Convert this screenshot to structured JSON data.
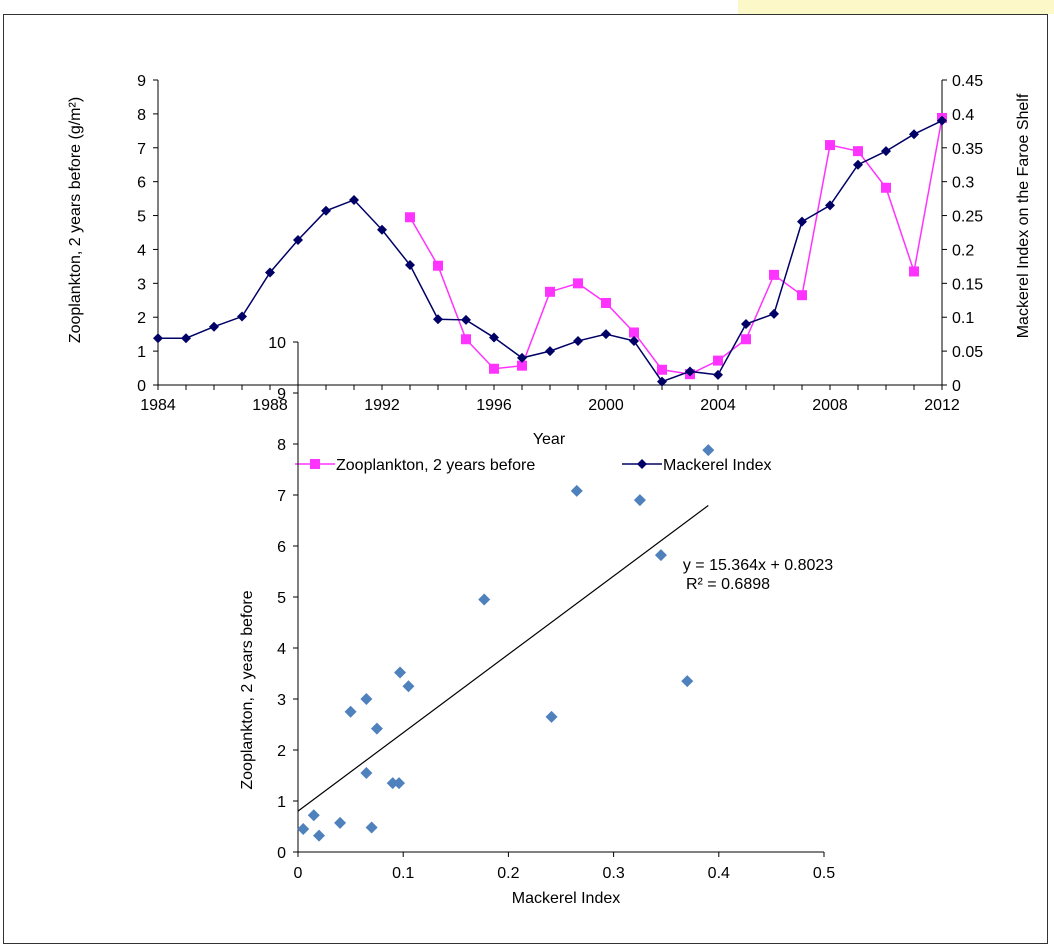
{
  "chart_data": [
    {
      "type": "line",
      "xlabel": "Year",
      "ylabel_left": "Zooplankton, 2 years before (g/m²)",
      "ylabel_right": "Mackerel Index on the Faroe Shelf",
      "x_ticks": [
        "1984",
        "1988",
        "1992",
        "1996",
        "2000",
        "2004",
        "2008",
        "2012"
      ],
      "x_tick_values": [
        1984,
        1988,
        1992,
        1996,
        2000,
        2004,
        2008,
        2012
      ],
      "xlim": [
        1984,
        2012
      ],
      "y_left_ticks": [
        "0",
        "1",
        "2",
        "3",
        "4",
        "5",
        "6",
        "7",
        "8",
        "9"
      ],
      "y_left_lim": [
        0,
        9
      ],
      "y_right_ticks": [
        "0",
        "0.05",
        "0.1",
        "0.15",
        "0.2",
        "0.25",
        "0.3",
        "0.35",
        "0.4",
        "0.45"
      ],
      "y_right_lim": [
        0,
        0.45
      ],
      "legend_position": "bottom",
      "series": [
        {
          "name": "Zooplankton, 2 years before",
          "axis": "left",
          "color": "#ff33ff",
          "marker": "square",
          "x": [
            1993,
            1994,
            1995,
            1996,
            1997,
            1998,
            1999,
            2000,
            2001,
            2002,
            2003,
            2004,
            2005,
            2006,
            2007,
            2008,
            2009,
            2010,
            2011,
            2012
          ],
          "values": [
            4.95,
            3.52,
            1.35,
            0.48,
            0.57,
            2.75,
            3.0,
            2.42,
            1.55,
            0.45,
            0.32,
            0.72,
            1.35,
            3.25,
            2.65,
            7.08,
            6.9,
            5.82,
            3.35,
            7.88
          ]
        },
        {
          "name": "Mackerel Index",
          "axis": "right",
          "color": "#000066",
          "marker": "diamond",
          "x": [
            1984,
            1985,
            1986,
            1987,
            1988,
            1989,
            1990,
            1991,
            1992,
            1993,
            1994,
            1995,
            1996,
            1997,
            1998,
            1999,
            2000,
            2001,
            2002,
            2003,
            2004,
            2005,
            2006,
            2007,
            2008,
            2009,
            2010,
            2011,
            2012
          ],
          "values": [
            0.069,
            0.069,
            0.086,
            0.101,
            0.166,
            0.214,
            0.257,
            0.273,
            0.229,
            0.177,
            0.097,
            0.096,
            0.07,
            0.04,
            0.05,
            0.065,
            0.075,
            0.065,
            0.005,
            0.02,
            0.015,
            0.09,
            0.105,
            0.241,
            0.265,
            0.325,
            0.345,
            0.37,
            0.39
          ]
        }
      ]
    },
    {
      "type": "scatter",
      "xlabel": "Mackerel Index",
      "ylabel": "Zooplankton, 2 years before",
      "x_ticks": [
        "0",
        "0.1",
        "0.2",
        "0.3",
        "0.4",
        "0.5"
      ],
      "x_tick_values": [
        0,
        0.1,
        0.2,
        0.3,
        0.4,
        0.5
      ],
      "xlim": [
        0,
        0.5
      ],
      "y_ticks": [
        "0",
        "1",
        "2",
        "3",
        "4",
        "5",
        "6",
        "7",
        "8",
        "9",
        "10"
      ],
      "ylim": [
        0,
        10
      ],
      "point_color": "#4f81bd",
      "points": [
        {
          "x": 0.177,
          "y": 4.95
        },
        {
          "x": 0.097,
          "y": 3.52
        },
        {
          "x": 0.096,
          "y": 1.35
        },
        {
          "x": 0.07,
          "y": 0.48
        },
        {
          "x": 0.04,
          "y": 0.57
        },
        {
          "x": 0.05,
          "y": 2.75
        },
        {
          "x": 0.065,
          "y": 3.0
        },
        {
          "x": 0.075,
          "y": 2.42
        },
        {
          "x": 0.065,
          "y": 1.55
        },
        {
          "x": 0.005,
          "y": 0.45
        },
        {
          "x": 0.02,
          "y": 0.32
        },
        {
          "x": 0.015,
          "y": 0.72
        },
        {
          "x": 0.09,
          "y": 1.35
        },
        {
          "x": 0.105,
          "y": 3.25
        },
        {
          "x": 0.241,
          "y": 2.65
        },
        {
          "x": 0.265,
          "y": 7.08
        },
        {
          "x": 0.325,
          "y": 6.9
        },
        {
          "x": 0.345,
          "y": 5.82
        },
        {
          "x": 0.37,
          "y": 3.35
        },
        {
          "x": 0.39,
          "y": 7.88
        }
      ],
      "trendline": {
        "slope": 15.364,
        "intercept": 0.8023,
        "x_range": [
          0,
          0.39
        ],
        "equation": "y = 15.364x + 0.8023",
        "r_squared": "R² = 0.6898"
      }
    }
  ]
}
